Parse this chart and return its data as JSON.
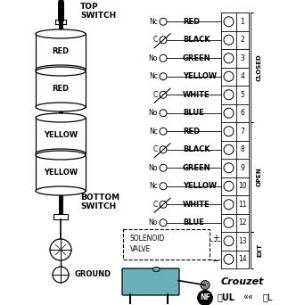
{
  "background_color": "#ffffff",
  "crouzet_label": "Crouzet",
  "connections": [
    {
      "label": "Nc",
      "color_name": "RED",
      "terminal": 1,
      "lever": false
    },
    {
      "label": "C",
      "color_name": "BLACK",
      "terminal": 2,
      "lever": true
    },
    {
      "label": "No",
      "color_name": "GREEN",
      "terminal": 3,
      "lever": false
    },
    {
      "label": "Nc",
      "color_name": "YELLOW",
      "terminal": 4,
      "lever": false
    },
    {
      "label": "C",
      "color_name": "WHITE",
      "terminal": 5,
      "lever": true
    },
    {
      "label": "No",
      "color_name": "BLUE",
      "terminal": 6,
      "lever": false
    },
    {
      "label": "Nc",
      "color_name": "RED",
      "terminal": 7,
      "lever": false
    },
    {
      "label": "C",
      "color_name": "BLACK",
      "terminal": 8,
      "lever": true
    },
    {
      "label": "No",
      "color_name": "GREEN",
      "terminal": 9,
      "lever": false
    },
    {
      "label": "Nc",
      "color_name": "YELLOW",
      "terminal": 10,
      "lever": false
    },
    {
      "label": "C",
      "color_name": "WHITE",
      "terminal": 11,
      "lever": true
    },
    {
      "label": "No",
      "color_name": "BLUE",
      "terminal": 12,
      "lever": false
    }
  ],
  "cam_labels": [
    "RED",
    "RED",
    "YELLOW",
    "YELLOW"
  ],
  "closed_rows": [
    1,
    6
  ],
  "open_rows": [
    7,
    12
  ],
  "ext_rows": [
    13,
    14
  ]
}
